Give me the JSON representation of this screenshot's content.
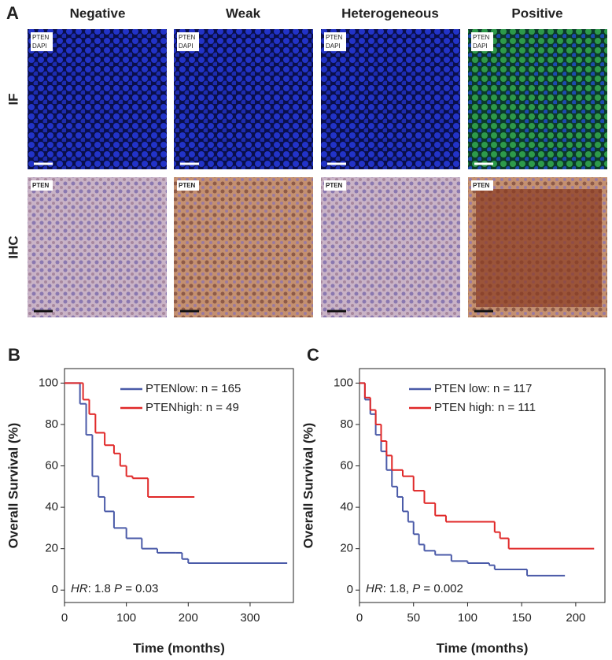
{
  "panel_a": {
    "label": "A",
    "columns": [
      "Negative",
      "Weak",
      "Heterogeneous",
      "Positive"
    ],
    "rows": [
      "IF",
      "IHC"
    ],
    "if_inset": [
      "PTEN",
      "DAPI"
    ],
    "ihc_inset": "PTEN"
  },
  "chart_data": [
    {
      "type": "step",
      "panel_label": "B",
      "x_label": "Time (months)",
      "y_label": "Overall Survival (%)",
      "annotation": [
        "HR",
        ": 1.8 ",
        "P",
        " = 0.03"
      ],
      "xlim": [
        0,
        370
      ],
      "ylim": [
        -6,
        107
      ],
      "xticks": [
        0,
        100,
        200,
        300
      ],
      "yticks": [
        0,
        20,
        40,
        60,
        80,
        100
      ],
      "series": [
        {
          "name": "PTENlow: n = 165",
          "color": "#4a5aa8",
          "x": [
            0,
            25,
            35,
            45,
            55,
            65,
            80,
            100,
            125,
            150,
            180,
            190,
            200,
            360
          ],
          "values": [
            100,
            90,
            75,
            55,
            45,
            38,
            30,
            25,
            20,
            18,
            18,
            15,
            13,
            13
          ]
        },
        {
          "name": "PTENhigh: n = 49",
          "color": "#e02828",
          "x": [
            0,
            30,
            40,
            50,
            65,
            80,
            90,
            100,
            110,
            135,
            210
          ],
          "values": [
            100,
            92,
            85,
            76,
            70,
            66,
            60,
            55,
            54,
            45,
            45
          ]
        }
      ]
    },
    {
      "type": "step",
      "panel_label": "C",
      "x_label": "Time (months)",
      "y_label": "Overall Survival (%)",
      "annotation": [
        "HR",
        ": 1.8, ",
        "P",
        " = 0.002"
      ],
      "xlim": [
        0,
        227
      ],
      "ylim": [
        -6,
        107
      ],
      "xticks": [
        0,
        50,
        100,
        150,
        200
      ],
      "yticks": [
        0,
        20,
        40,
        60,
        80,
        100
      ],
      "series": [
        {
          "name": "PTEN low: n = 117",
          "color": "#4a5aa8",
          "x": [
            0,
            5,
            10,
            15,
            20,
            25,
            30,
            35,
            40,
            45,
            50,
            55,
            60,
            70,
            85,
            100,
            120,
            125,
            155,
            190
          ],
          "values": [
            100,
            92,
            85,
            75,
            67,
            58,
            50,
            45,
            38,
            33,
            27,
            22,
            19,
            17,
            14,
            13,
            12,
            10,
            7,
            7
          ]
        },
        {
          "name": "PTEN high: n = 111",
          "color": "#e02828",
          "x": [
            0,
            5,
            10,
            15,
            20,
            25,
            30,
            40,
            50,
            60,
            70,
            80,
            125,
            130,
            138,
            217
          ],
          "values": [
            100,
            93,
            87,
            80,
            72,
            65,
            58,
            55,
            48,
            42,
            36,
            33,
            28,
            25,
            20,
            20
          ]
        }
      ]
    }
  ]
}
